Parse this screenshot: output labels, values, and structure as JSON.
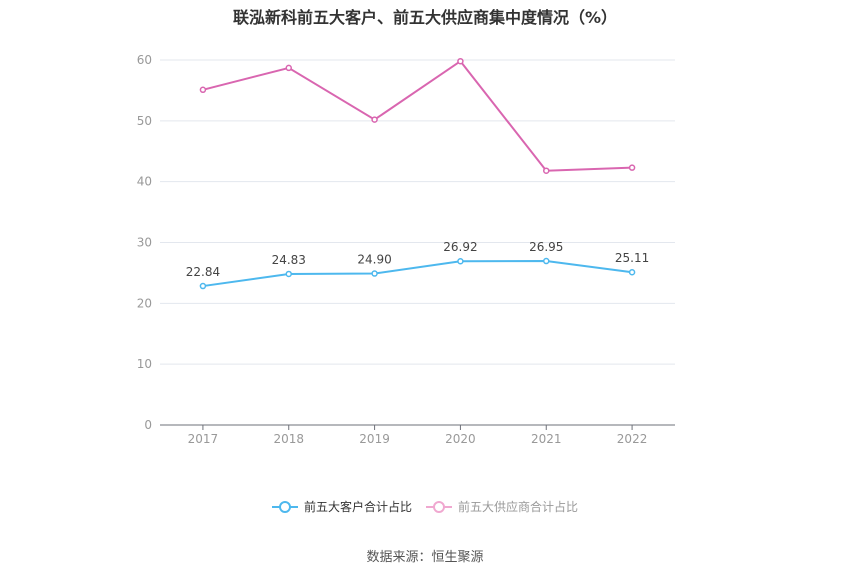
{
  "chart_data": {
    "type": "line",
    "title": "联泓新科前五大客户、前五大供应商集中度情况（%）",
    "xlabel": "",
    "ylabel": "",
    "categories": [
      "2017",
      "2018",
      "2019",
      "2020",
      "2021",
      "2022"
    ],
    "ylim": [
      0,
      60
    ],
    "yticks": [
      0,
      10,
      20,
      30,
      40,
      50,
      60
    ],
    "grid": true,
    "legend_position": "bottom",
    "series": [
      {
        "name": "前五大客户合计占比",
        "color": "#4db8ee",
        "values": [
          22.84,
          24.83,
          24.9,
          26.92,
          26.95,
          25.11
        ],
        "labels_shown": true
      },
      {
        "name": "前五大供应商合计占比",
        "color": "#d966b0",
        "values": [
          55.1,
          58.7,
          50.2,
          59.8,
          41.8,
          42.3
        ],
        "labels_shown": false
      }
    ]
  },
  "title": "联泓新科前五大客户、前五大供应商集中度情况（%）",
  "legend": [
    {
      "label": "前五大客户合计占比",
      "color": "#4db8ee",
      "text_color": "#333333"
    },
    {
      "label": "前五大供应商合计占比",
      "color": "#f0a8d0",
      "text_color": "#999999"
    }
  ],
  "source": "数据来源：恒生聚源"
}
